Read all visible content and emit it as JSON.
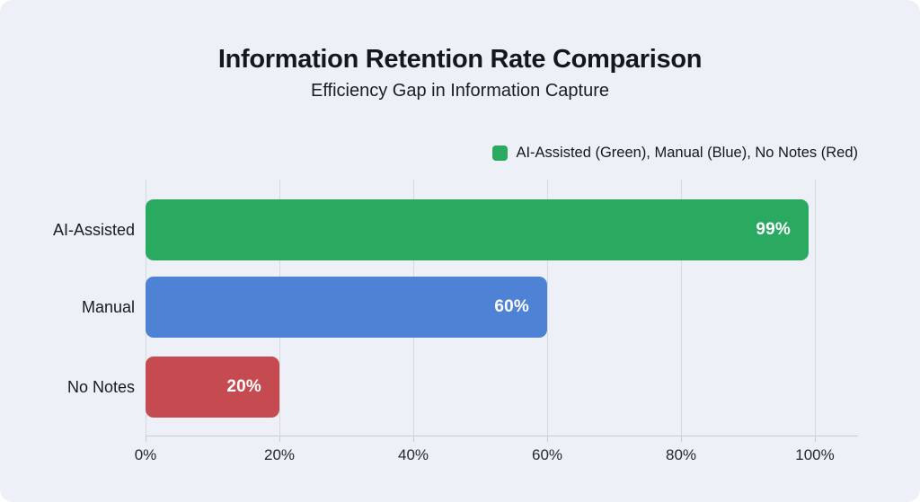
{
  "chart": {
    "title": "Information Retention Rate Comparison",
    "subtitle": "Efficiency Gap in Information Capture",
    "legend": {
      "label": "AI-Assisted (Green), Manual (Blue), No Notes (Red)",
      "swatch_color": "#2aa960"
    }
  },
  "chart_data": {
    "type": "bar",
    "orientation": "horizontal",
    "title": "Information Retention Rate Comparison",
    "subtitle": "Efficiency Gap in Information Capture",
    "categories": [
      "AI-Assisted",
      "Manual",
      "No Notes"
    ],
    "values": [
      99,
      60,
      20
    ],
    "value_labels": [
      "99%",
      "60%",
      "20%"
    ],
    "bar_colors": [
      "#2aa960",
      "#4d82d4",
      "#c54b50"
    ],
    "xlabel": "",
    "ylabel": "",
    "xlim": [
      0,
      100
    ],
    "x_ticks": [
      0,
      20,
      40,
      60,
      80,
      100
    ],
    "x_tick_labels": [
      "0%",
      "20%",
      "40%",
      "60%",
      "80%",
      "100%"
    ],
    "grid": "vertical-gridlines-on",
    "legend_position": "top-right",
    "value_label_position": "inside-end",
    "value_label_color": "#ffffff"
  },
  "colors": {
    "card_background": "#edf1f7",
    "page_background": "#ffffff",
    "gridline": "#d6dae0",
    "axis_line": "#c8ccd2",
    "title_text": "#14171c",
    "tick_text": "#24282f"
  }
}
